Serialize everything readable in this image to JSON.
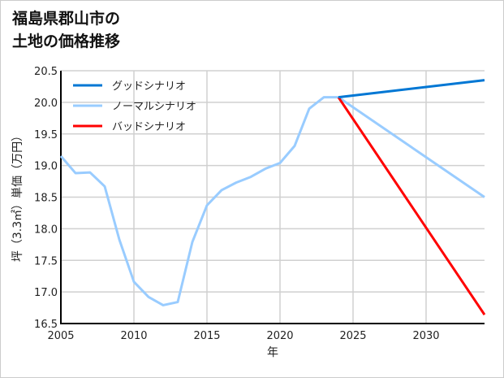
{
  "title_lines": [
    "福島県郡山市の",
    "土地の価格推移"
  ],
  "chart_data": {
    "type": "line",
    "title": "福島県郡山市の土地の価格推移",
    "xlabel": "年",
    "ylabel": "坪（3.3㎡）単価（万円）",
    "xlim": [
      2005,
      2034
    ],
    "ylim": [
      16.5,
      20.5
    ],
    "xticks": [
      2005,
      2010,
      2015,
      2020,
      2025,
      2030
    ],
    "yticks": [
      16.5,
      17.0,
      17.5,
      18.0,
      18.5,
      19.0,
      19.5,
      20.0,
      20.5
    ],
    "grid": true,
    "legend_position": "top-left",
    "series": [
      {
        "name": "グッドシナリオ",
        "color": "#0077d4",
        "x": [
          2024,
          2034
        ],
        "y": [
          20.08,
          20.35
        ]
      },
      {
        "name": "ノーマルシナリオ",
        "color": "#99ccff",
        "x": [
          2005,
          2006,
          2007,
          2008,
          2009,
          2010,
          2011,
          2012,
          2013,
          2014,
          2015,
          2016,
          2017,
          2018,
          2019,
          2020,
          2021,
          2022,
          2023,
          2024,
          2034
        ],
        "y": [
          19.15,
          18.88,
          18.89,
          18.67,
          17.83,
          17.16,
          16.92,
          16.79,
          16.84,
          17.79,
          18.37,
          18.61,
          18.73,
          18.82,
          18.95,
          19.04,
          19.31,
          19.9,
          20.08,
          20.08,
          18.5
        ]
      },
      {
        "name": "バッドシナリオ",
        "color": "#ff0000",
        "x": [
          2024,
          2034
        ],
        "y": [
          20.08,
          16.64
        ]
      }
    ]
  }
}
